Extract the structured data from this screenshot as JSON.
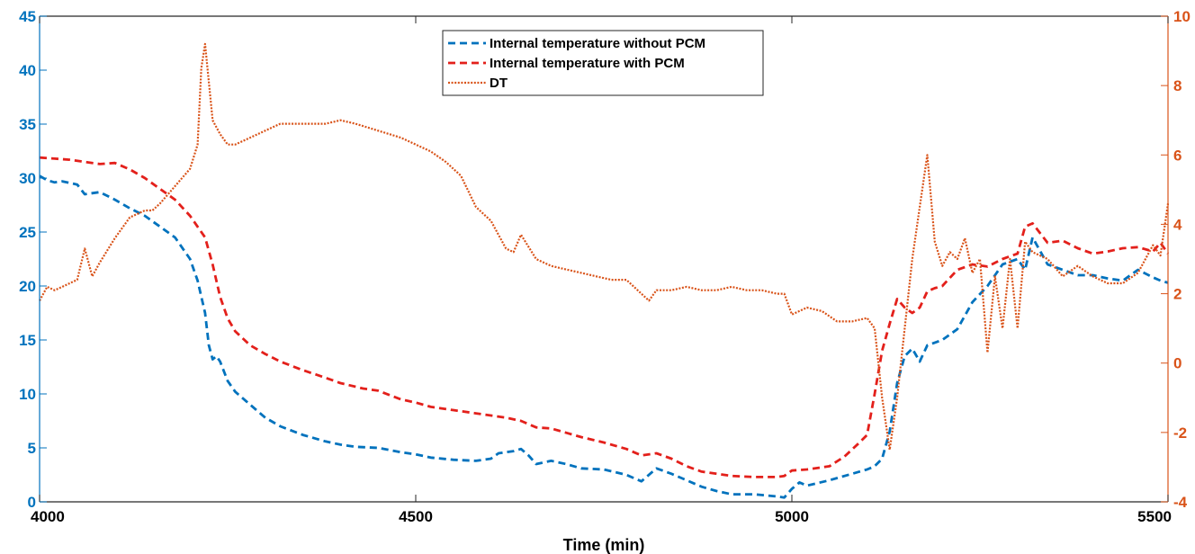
{
  "chart_data": {
    "type": "line",
    "xlabel": "Time (min)",
    "xlim": [
      4000,
      5500
    ],
    "x_ticks": [
      4000,
      4500,
      5000,
      5500
    ],
    "ylim_left": [
      0,
      45
    ],
    "y_ticks_left": [
      0,
      5,
      10,
      15,
      20,
      25,
      30,
      35,
      40,
      45
    ],
    "ylim_right": [
      -4,
      10
    ],
    "y_ticks_right": [
      -4,
      -2,
      0,
      2,
      4,
      6,
      8,
      10
    ],
    "legend_position": "top-center",
    "grid": false,
    "colors": {
      "left_axis": "#0072bd",
      "right_axis": "#d95319",
      "without_pcm": "#0072bd",
      "with_pcm": "#e3201b",
      "dt": "#d95319"
    },
    "series": [
      {
        "name": "Internal temperature without PCM",
        "axis": "left",
        "style": "dashed",
        "x": [
          4000,
          4010,
          4020,
          4030,
          4050,
          4060,
          4080,
          4100,
          4120,
          4140,
          4160,
          4180,
          4200,
          4210,
          4220,
          4225,
          4230,
          4235,
          4240,
          4250,
          4260,
          4280,
          4300,
          4320,
          4350,
          4380,
          4400,
          4420,
          4450,
          4480,
          4500,
          4520,
          4550,
          4580,
          4600,
          4610,
          4630,
          4640,
          4650,
          4660,
          4680,
          4700,
          4720,
          4750,
          4780,
          4800,
          4820,
          4840,
          4860,
          4880,
          4900,
          4920,
          4950,
          4980,
          4990,
          5000,
          5010,
          5020,
          5050,
          5080,
          5100,
          5110,
          5120,
          5130,
          5140,
          5150,
          5160,
          5170,
          5180,
          5200,
          5220,
          5240,
          5260,
          5280,
          5300,
          5310,
          5320,
          5340,
          5360,
          5380,
          5400,
          5420,
          5440,
          5460,
          5480,
          5490,
          5500
        ],
        "y": [
          30.2,
          29.8,
          29.6,
          29.7,
          29.4,
          28.5,
          28.7,
          28.0,
          27.2,
          26.5,
          25.5,
          24.5,
          22.5,
          20.5,
          17.5,
          14.5,
          13.2,
          13.5,
          13.0,
          11.2,
          10.2,
          9.0,
          7.8,
          7.0,
          6.2,
          5.6,
          5.3,
          5.1,
          5.0,
          4.6,
          4.4,
          4.1,
          3.9,
          3.8,
          4.0,
          4.5,
          4.7,
          4.9,
          4.3,
          3.5,
          3.8,
          3.5,
          3.1,
          3.0,
          2.5,
          1.9,
          3.1,
          2.6,
          2.0,
          1.4,
          1.0,
          0.7,
          0.7,
          0.5,
          0.4,
          1.2,
          1.8,
          1.5,
          2.0,
          2.6,
          3.0,
          3.3,
          4.0,
          6.5,
          11.0,
          13.5,
          14.2,
          13.0,
          14.5,
          15.0,
          16.0,
          18.5,
          20.0,
          22.0,
          22.5,
          21.5,
          24.5,
          22.0,
          21.5,
          21.0,
          21.0,
          20.7,
          20.5,
          21.5,
          20.8,
          20.5,
          20.3
        ]
      },
      {
        "name": "Internal temperature with PCM",
        "axis": "left",
        "style": "dashed",
        "x": [
          4000,
          4020,
          4040,
          4060,
          4080,
          4100,
          4120,
          4140,
          4160,
          4180,
          4200,
          4220,
          4230,
          4240,
          4250,
          4260,
          4280,
          4300,
          4320,
          4350,
          4380,
          4400,
          4430,
          4450,
          4480,
          4500,
          4520,
          4550,
          4580,
          4600,
          4620,
          4640,
          4660,
          4680,
          4700,
          4720,
          4750,
          4780,
          4800,
          4820,
          4840,
          4860,
          4880,
          4900,
          4920,
          4950,
          4980,
          4990,
          5000,
          5020,
          5050,
          5070,
          5090,
          5100,
          5110,
          5120,
          5130,
          5140,
          5150,
          5160,
          5170,
          5180,
          5190,
          5200,
          5220,
          5240,
          5260,
          5280,
          5300,
          5310,
          5320,
          5340,
          5360,
          5380,
          5400,
          5420,
          5440,
          5460,
          5480,
          5490,
          5500
        ],
        "y": [
          31.9,
          31.8,
          31.7,
          31.5,
          31.3,
          31.4,
          30.8,
          30.0,
          29.0,
          28.0,
          26.5,
          24.5,
          22.0,
          19.0,
          17.0,
          15.8,
          14.5,
          13.7,
          13.0,
          12.2,
          11.5,
          11.0,
          10.5,
          10.3,
          9.5,
          9.2,
          8.8,
          8.5,
          8.2,
          8.0,
          7.8,
          7.5,
          6.9,
          6.8,
          6.4,
          6.0,
          5.5,
          4.9,
          4.3,
          4.5,
          4.0,
          3.3,
          2.8,
          2.6,
          2.4,
          2.3,
          2.3,
          2.4,
          2.9,
          3.0,
          3.3,
          4.2,
          5.5,
          6.2,
          10.0,
          14.0,
          16.5,
          18.8,
          18.0,
          17.5,
          18.0,
          19.5,
          19.8,
          20.0,
          21.5,
          22.0,
          21.8,
          22.5,
          23.0,
          25.5,
          25.8,
          24.0,
          24.2,
          23.5,
          23.0,
          23.2,
          23.5,
          23.6,
          23.2,
          24.0,
          23.0
        ]
      },
      {
        "name": "DT",
        "axis": "right",
        "style": "dotted",
        "x": [
          4000,
          4010,
          4020,
          4030,
          4050,
          4060,
          4070,
          4080,
          4100,
          4120,
          4140,
          4150,
          4160,
          4180,
          4200,
          4210,
          4215,
          4220,
          4230,
          4240,
          4250,
          4260,
          4280,
          4300,
          4320,
          4350,
          4380,
          4400,
          4420,
          4450,
          4480,
          4500,
          4520,
          4540,
          4560,
          4580,
          4600,
          4620,
          4630,
          4640,
          4660,
          4680,
          4700,
          4720,
          4740,
          4760,
          4780,
          4800,
          4810,
          4820,
          4840,
          4860,
          4880,
          4900,
          4920,
          4940,
          4960,
          4980,
          4990,
          5000,
          5020,
          5040,
          5060,
          5080,
          5100,
          5110,
          5120,
          5130,
          5140,
          5150,
          5160,
          5170,
          5180,
          5190,
          5200,
          5210,
          5220,
          5230,
          5240,
          5250,
          5260,
          5270,
          5280,
          5290,
          5300,
          5310,
          5320,
          5340,
          5360,
          5380,
          5400,
          5420,
          5440,
          5460,
          5480,
          5490,
          5500
        ],
        "y": [
          1.8,
          2.2,
          2.1,
          2.2,
          2.4,
          3.3,
          2.5,
          2.9,
          3.6,
          4.2,
          4.4,
          4.4,
          4.6,
          5.1,
          5.6,
          6.3,
          8.5,
          9.2,
          7.0,
          6.6,
          6.3,
          6.3,
          6.5,
          6.7,
          6.9,
          6.9,
          6.9,
          7.0,
          6.9,
          6.7,
          6.5,
          6.3,
          6.1,
          5.8,
          5.4,
          4.5,
          4.1,
          3.3,
          3.2,
          3.7,
          3.0,
          2.8,
          2.7,
          2.6,
          2.5,
          2.4,
          2.4,
          2.0,
          1.8,
          2.1,
          2.1,
          2.2,
          2.1,
          2.1,
          2.2,
          2.1,
          2.1,
          2.0,
          2.0,
          1.4,
          1.6,
          1.5,
          1.2,
          1.2,
          1.3,
          1.0,
          -1.0,
          -2.5,
          -1.0,
          1.0,
          3.0,
          4.5,
          6.0,
          3.5,
          2.8,
          3.2,
          3.0,
          3.6,
          2.6,
          3.0,
          0.3,
          2.5,
          1.0,
          3.0,
          1.0,
          3.5,
          3.2,
          3.0,
          2.5,
          2.8,
          2.5,
          2.3,
          2.3,
          2.6,
          3.4,
          3.1,
          4.6
        ]
      }
    ]
  }
}
